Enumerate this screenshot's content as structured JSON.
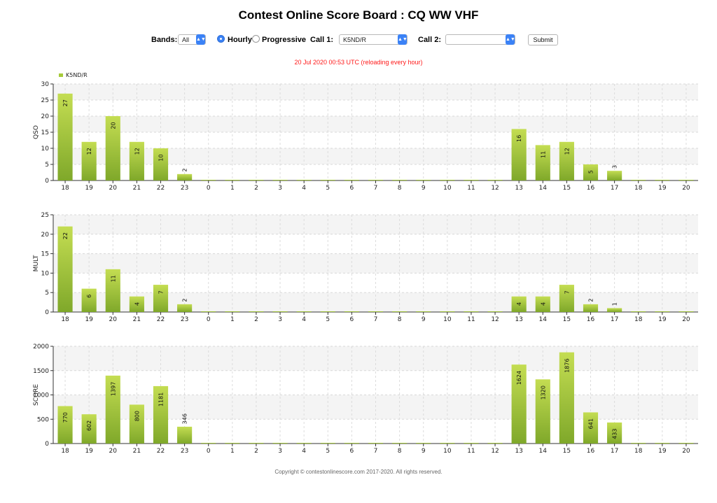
{
  "title": "Contest Online Score Board : CQ WW VHF",
  "controls": {
    "bands_label": "Bands:",
    "bands_value": "All",
    "hourly_label": "Hourly",
    "progressive_label": "Progressive",
    "mode_selected": "Hourly",
    "call1_label": "Call 1:",
    "call1_value": "K5ND/R",
    "call2_label": "Call 2:",
    "call2_value": "",
    "submit_label": "Submit"
  },
  "status_text": "20 Jul 2020 00:53 UTC   (reloading every hour)",
  "colors": {
    "bar_top": "#c4dd52",
    "bar_bottom": "#7fa82a",
    "legend": "#a6cb3a",
    "status": "#ff1a1a"
  },
  "chart_data": [
    {
      "type": "bar",
      "legend": [
        "K5ND/R"
      ],
      "legend_position": "top-left",
      "grid": true,
      "categories": [
        "18",
        "19",
        "20",
        "21",
        "22",
        "23",
        "0",
        "1",
        "2",
        "3",
        "4",
        "5",
        "6",
        "7",
        "8",
        "9",
        "10",
        "11",
        "12",
        "13",
        "14",
        "15",
        "16",
        "17",
        "18",
        "19",
        "20"
      ],
      "series": [
        {
          "name": "K5ND/R",
          "values": [
            27,
            12,
            20,
            12,
            10,
            2,
            0,
            0,
            0,
            0,
            0,
            0,
            0,
            0,
            0,
            0,
            0,
            0,
            0,
            16,
            11,
            12,
            5,
            3,
            0,
            0,
            0
          ]
        }
      ],
      "ylabel": "QSO",
      "ylim": [
        0,
        30
      ],
      "yticks": [
        0,
        5,
        10,
        15,
        20,
        25,
        30
      ]
    },
    {
      "type": "bar",
      "grid": true,
      "categories": [
        "18",
        "19",
        "20",
        "21",
        "22",
        "23",
        "0",
        "1",
        "2",
        "3",
        "4",
        "5",
        "6",
        "7",
        "8",
        "9",
        "10",
        "11",
        "12",
        "13",
        "14",
        "15",
        "16",
        "17",
        "18",
        "19",
        "20"
      ],
      "series": [
        {
          "name": "K5ND/R",
          "values": [
            22,
            6,
            11,
            4,
            7,
            2,
            0,
            0,
            0,
            0,
            0,
            0,
            0,
            0,
            0,
            0,
            0,
            0,
            0,
            4,
            4,
            7,
            2,
            1,
            0,
            0,
            0
          ]
        }
      ],
      "ylabel": "MULT",
      "ylim": [
        0,
        25
      ],
      "yticks": [
        0,
        5,
        10,
        15,
        20,
        25
      ]
    },
    {
      "type": "bar",
      "grid": true,
      "categories": [
        "18",
        "19",
        "20",
        "21",
        "22",
        "23",
        "0",
        "1",
        "2",
        "3",
        "4",
        "5",
        "6",
        "7",
        "8",
        "9",
        "10",
        "11",
        "12",
        "13",
        "14",
        "15",
        "16",
        "17",
        "18",
        "19",
        "20"
      ],
      "series": [
        {
          "name": "K5ND/R",
          "values": [
            770,
            602,
            1397,
            800,
            1181,
            346,
            0,
            0,
            0,
            0,
            0,
            0,
            0,
            0,
            0,
            0,
            0,
            0,
            0,
            1624,
            1320,
            1876,
            641,
            433,
            0,
            0,
            0
          ]
        }
      ],
      "ylabel": "SCORE",
      "ylim": [
        0,
        2000
      ],
      "yticks": [
        0,
        500,
        1000,
        1500,
        2000
      ]
    }
  ],
  "footer": "Copyright © contestonlinescore.com 2017-2020. All rights reserved."
}
